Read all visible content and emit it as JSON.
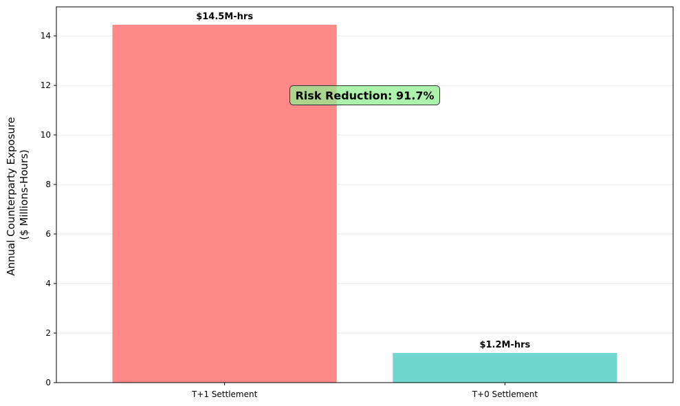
{
  "chart_data": {
    "type": "bar",
    "categories": [
      "T+1 Settlement",
      "T+0 Settlement"
    ],
    "values": [
      14.45,
      1.2
    ],
    "value_labels": [
      "$14.5M-hrs",
      "$1.2M-hrs"
    ],
    "colors": [
      "#ff8888",
      "#72d6d0"
    ],
    "ylabel_lines": [
      "Annual Counterparty Exposure",
      "($ Millions-Hours)"
    ],
    "ylim": [
      0,
      15.17
    ],
    "yticks": [
      0,
      2,
      4,
      6,
      8,
      10,
      12,
      14
    ],
    "grid": "y",
    "annotation": {
      "text": "Risk Reduction: 91.7%",
      "x_category_position": 0.5,
      "y_value": 11.6,
      "box_color": "#90ee90"
    }
  }
}
